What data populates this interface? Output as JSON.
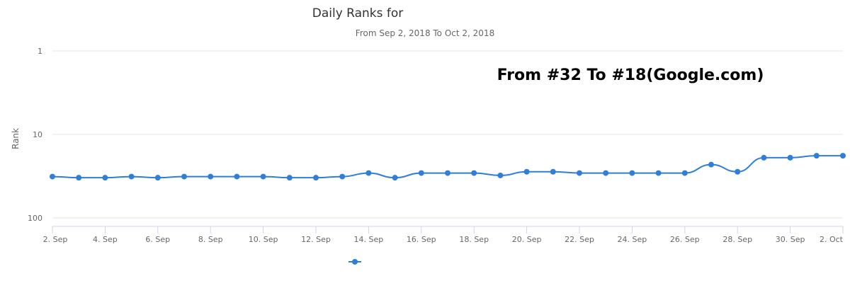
{
  "colors": {
    "series": "#2f7ed8"
  },
  "chart_data": {
    "type": "line",
    "title": "Daily Ranks for",
    "subtitle": "From Sep 2, 2018 To Oct 2, 2018",
    "annotation": "From #32 To #18(Google.com)",
    "ylabel": "Rank",
    "yscale": "log",
    "yreversed": true,
    "ylim": [
      1,
      100
    ],
    "yticks": [
      {
        "value": 1,
        "label": "1"
      },
      {
        "value": 10,
        "label": "10"
      },
      {
        "value": 100,
        "label": "100"
      }
    ],
    "xticks": [
      "2. Sep",
      "4. Sep",
      "6. Sep",
      "8. Sep",
      "10. Sep",
      "12. Sep",
      "14. Sep",
      "16. Sep",
      "18. Sep",
      "20. Sep",
      "22. Sep",
      "24. Sep",
      "26. Sep",
      "28. Sep",
      "30. Sep",
      "2. Oct"
    ],
    "grid": true,
    "legend": "bottom-center",
    "series": [
      {
        "x": [
          "2018-09-02",
          "2018-09-03",
          "2018-09-04",
          "2018-09-05",
          "2018-09-06",
          "2018-09-07",
          "2018-09-08",
          "2018-09-09",
          "2018-09-10",
          "2018-09-11",
          "2018-09-12",
          "2018-09-13",
          "2018-09-14",
          "2018-09-15",
          "2018-09-16",
          "2018-09-17",
          "2018-09-18",
          "2018-09-19",
          "2018-09-20",
          "2018-09-21",
          "2018-09-22",
          "2018-09-23",
          "2018-09-24",
          "2018-09-25",
          "2018-09-26",
          "2018-09-27",
          "2018-09-28",
          "2018-09-29",
          "2018-09-30",
          "2018-10-01",
          "2018-10-02"
        ],
        "values": [
          32,
          33,
          33,
          32,
          33,
          32,
          32,
          32,
          32,
          33,
          33,
          32,
          29,
          33,
          29,
          29,
          29,
          31,
          28,
          28,
          29,
          29,
          29,
          29,
          29,
          23,
          28,
          19,
          19,
          18,
          18
        ]
      }
    ]
  }
}
